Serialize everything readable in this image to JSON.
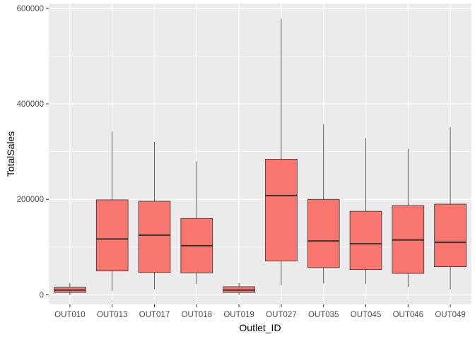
{
  "chart_data": {
    "type": "boxplot",
    "title": "",
    "xlabel": "Outlet_ID",
    "ylabel": "TotalSales",
    "ylim": [
      -20000,
      610000
    ],
    "yticks": [
      0,
      200000,
      400000,
      600000
    ],
    "ytick_labels": [
      "0",
      "200000",
      "400000",
      "600000"
    ],
    "grid": true,
    "legend": "none",
    "colors": {
      "box_fill": "#F8766D",
      "box_stroke": "#333333",
      "panel_bg": "#EBEBEB",
      "grid": "#FFFFFF"
    },
    "categories": [
      "OUT010",
      "OUT013",
      "OUT017",
      "OUT018",
      "OUT019",
      "OUT027",
      "OUT035",
      "OUT045",
      "OUT046",
      "OUT049"
    ],
    "boxes": [
      {
        "category": "OUT010",
        "whisker_low": 0,
        "q1": 5000,
        "median": 10000,
        "q3": 16000,
        "whisker_high": 25000
      },
      {
        "category": "OUT013",
        "whisker_low": 8000,
        "q1": 50000,
        "median": 117000,
        "q3": 199000,
        "whisker_high": 342000
      },
      {
        "category": "OUT017",
        "whisker_low": 12000,
        "q1": 47000,
        "median": 125000,
        "q3": 196000,
        "whisker_high": 320000
      },
      {
        "category": "OUT018",
        "whisker_low": 23000,
        "q1": 46000,
        "median": 103000,
        "q3": 160000,
        "whisker_high": 279000
      },
      {
        "category": "OUT019",
        "whisker_low": 0,
        "q1": 5000,
        "median": 10000,
        "q3": 17000,
        "whisker_high": 25000
      },
      {
        "category": "OUT027",
        "whisker_low": 20000,
        "q1": 71000,
        "median": 208000,
        "q3": 284000,
        "whisker_high": 578000
      },
      {
        "category": "OUT035",
        "whisker_low": 24000,
        "q1": 57000,
        "median": 113000,
        "q3": 200000,
        "whisker_high": 357000
      },
      {
        "category": "OUT045",
        "whisker_low": 23000,
        "q1": 53000,
        "median": 107000,
        "q3": 175000,
        "whisker_high": 328000
      },
      {
        "category": "OUT046",
        "whisker_low": 17000,
        "q1": 45000,
        "median": 115000,
        "q3": 187000,
        "whisker_high": 306000
      },
      {
        "category": "OUT049",
        "whisker_low": 12000,
        "q1": 59000,
        "median": 110000,
        "q3": 190000,
        "whisker_high": 351000
      }
    ]
  }
}
